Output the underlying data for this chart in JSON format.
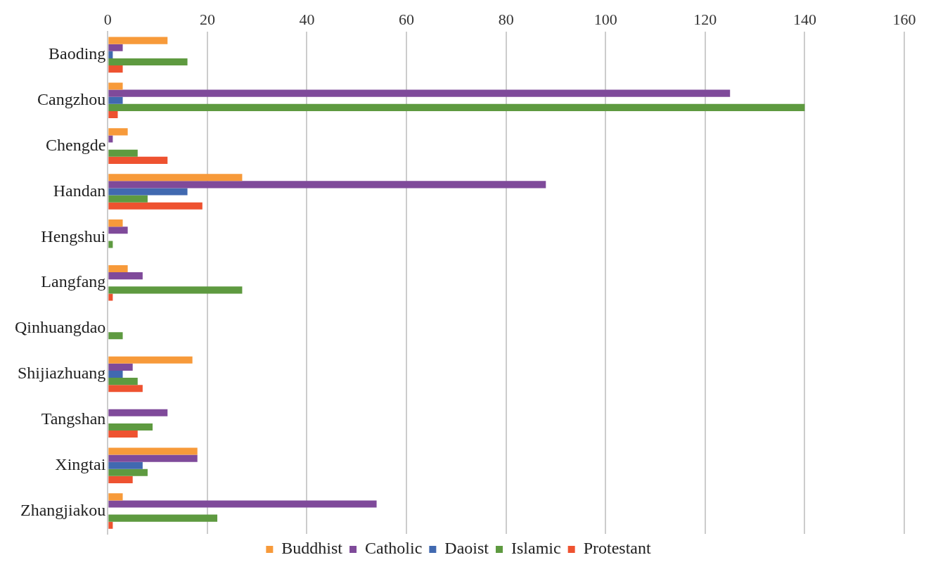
{
  "chart_data": {
    "type": "bar",
    "orientation": "horizontal",
    "categories": [
      "Baoding",
      "Cangzhou",
      "Chengde",
      "Handan",
      "Hengshui",
      "Langfang",
      "Qinhuangdao",
      "Shijiazhuang",
      "Tangshan",
      "Xingtai",
      "Zhangjiakou"
    ],
    "series": [
      {
        "name": "Buddhist",
        "color": "#f79a3a",
        "values": [
          12,
          3,
          4,
          27,
          3,
          4,
          0,
          17,
          0,
          18,
          3
        ]
      },
      {
        "name": "Catholic",
        "color": "#7f4a9a",
        "values": [
          3,
          125,
          1,
          88,
          4,
          7,
          0,
          5,
          12,
          18,
          54
        ]
      },
      {
        "name": "Daoist",
        "color": "#4169b0",
        "values": [
          1,
          3,
          0,
          16,
          0,
          0,
          0,
          3,
          0,
          7,
          0
        ]
      },
      {
        "name": "Islamic",
        "color": "#5e9a40",
        "values": [
          16,
          140,
          6,
          8,
          1,
          27,
          3,
          6,
          9,
          8,
          22
        ]
      },
      {
        "name": "Protestant",
        "color": "#ee5230",
        "values": [
          3,
          2,
          12,
          19,
          0,
          1,
          0,
          7,
          6,
          5,
          1
        ]
      }
    ],
    "xlim": [
      0,
      160
    ],
    "xticks": [
      0,
      20,
      40,
      60,
      80,
      100,
      120,
      140,
      160
    ],
    "grid": "x",
    "legend": "bottom"
  }
}
